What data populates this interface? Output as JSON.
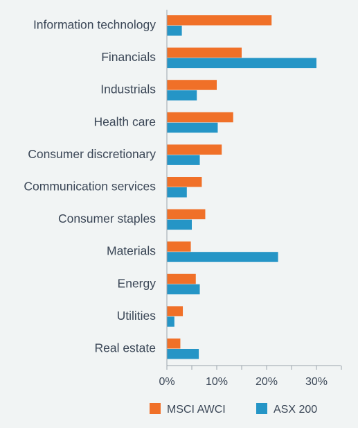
{
  "chart_data": {
    "type": "bar",
    "orientation": "horizontal",
    "categories": [
      "Information technology",
      "Financials",
      "Industrials",
      "Health care",
      "Consumer discretionary",
      "Communication services",
      "Consumer staples",
      "Materials",
      "Energy",
      "Utilities",
      "Real estate"
    ],
    "series": [
      {
        "name": "MSCI AWCI",
        "color": "#f07028",
        "values": [
          21.0,
          15.0,
          10.0,
          13.3,
          11.0,
          7.0,
          7.7,
          4.8,
          5.8,
          3.2,
          2.7
        ]
      },
      {
        "name": "ASX 200",
        "color": "#2595c6",
        "values": [
          3.0,
          30.0,
          6.0,
          10.2,
          6.6,
          4.0,
          5.0,
          22.3,
          6.6,
          1.5,
          6.4
        ]
      }
    ],
    "xaxis": {
      "ticks": [
        0,
        10,
        20,
        30
      ],
      "tick_labels": [
        "0%",
        "10%",
        "20%",
        "30%"
      ],
      "xlim": [
        0,
        35
      ]
    },
    "legend": {
      "placement": "bottom"
    },
    "grid": false
  }
}
